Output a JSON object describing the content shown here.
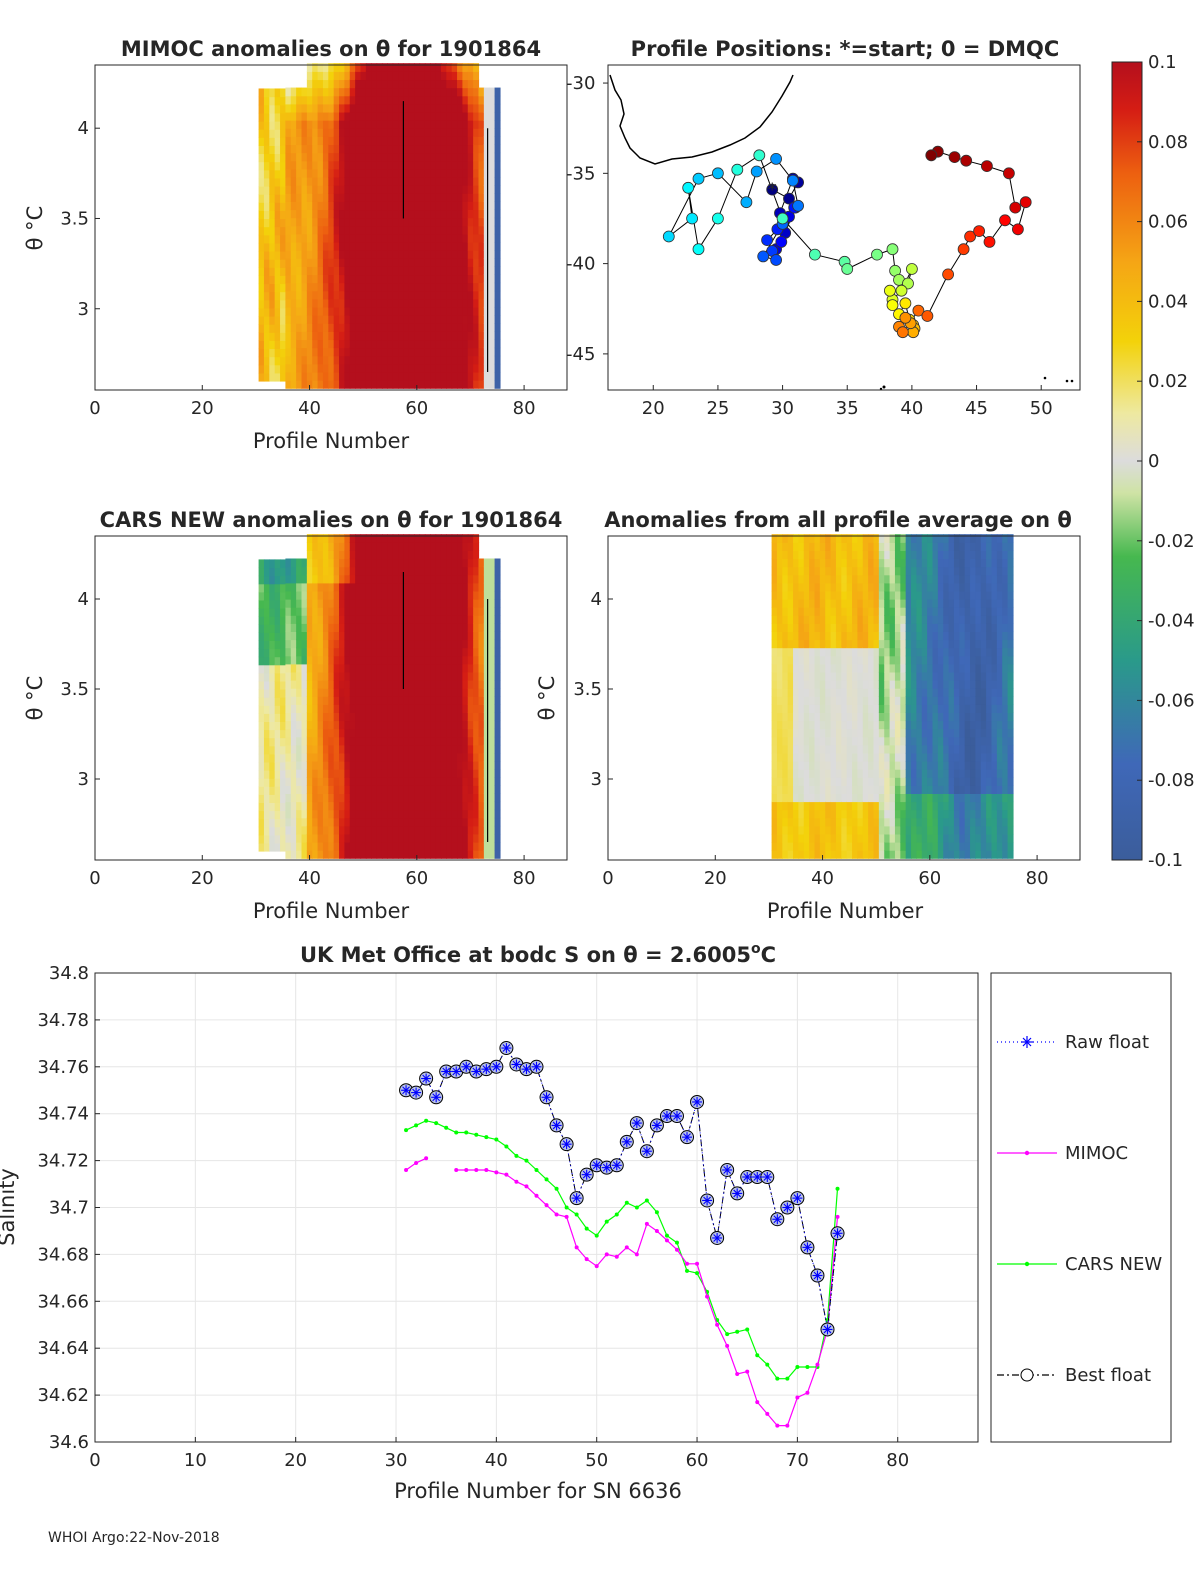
{
  "footer": "WHOI Argo:22-Nov-2018",
  "colorbar": {
    "ticks": [
      "0.1",
      "0.08",
      "0.06",
      "0.04",
      "0.02",
      "0",
      "-0.02",
      "-0.04",
      "-0.06",
      "-0.08",
      "-0.1"
    ],
    "min": -0.1,
    "max": 0.1
  },
  "panels": {
    "mimoc": {
      "title": "MIMOC anomalies on θ  for 1901864",
      "xlabel": "Profile Number",
      "ylabel": "θ °C",
      "xticks": [
        "0",
        "20",
        "40",
        "60",
        "80"
      ],
      "yticks": [
        "4",
        "3.5",
        "3"
      ]
    },
    "positions": {
      "title": "Profile Positions: *=start; 0 = DMQC",
      "xticks": [
        "20",
        "25",
        "30",
        "35",
        "40",
        "45",
        "50"
      ],
      "yticks": [
        "-30",
        "-35",
        "-40",
        "-45"
      ]
    },
    "cars": {
      "title": "CARS NEW anomalies on θ for 1901864",
      "xlabel": "Profile Number",
      "ylabel": "θ °C",
      "xticks": [
        "0",
        "20",
        "40",
        "60",
        "80"
      ],
      "yticks": [
        "4",
        "3.5",
        "3"
      ]
    },
    "allavg": {
      "title": "Anomalies from all profile average on θ",
      "xlabel": "Profile Number",
      "ylabel": "θ °C",
      "xticks": [
        "0",
        "20",
        "40",
        "60",
        "80"
      ],
      "yticks": [
        "4",
        "3.5",
        "3"
      ]
    }
  },
  "chart_data": [
    {
      "type": "heatmap",
      "title": "MIMOC anomalies on θ  for 1901864",
      "xlabel": "Profile Number",
      "ylabel": "θ °C",
      "xlim": [
        0,
        88
      ],
      "ylim": [
        2.55,
        4.35
      ],
      "profile_range": [
        31,
        76
      ],
      "summary": "strong positive anomalies (>0.1) for profiles ~45-72, near zero at edges, negative near profile 75"
    },
    {
      "type": "scatter",
      "title": "Profile Positions: *=start; 0 = DMQC",
      "xlim": [
        16.5,
        53
      ],
      "ylim": [
        -47,
        -29
      ],
      "color_by": "profile number",
      "lon": [
        29.2,
        30.5,
        31.2,
        30.8,
        29.8,
        30.2,
        29.5,
        30.5,
        31.0,
        29.9,
        30.9,
        29.6,
        28.8,
        29.2,
        29.5,
        28.5,
        30.0,
        31.2,
        30.8,
        29.5,
        28.0,
        27.2,
        25.0,
        23.5,
        21.2,
        23.0,
        22.7,
        23.5,
        25.0,
        26.5,
        28.2,
        30.0,
        32.5,
        34.8,
        35.0,
        37.3,
        38.5,
        38.7,
        39.0,
        39.7,
        40.0,
        39.2,
        38.5,
        38.3,
        38.5,
        39.0,
        39.5,
        39.8,
        40.1,
        40.2,
        40.1,
        39.9,
        39.5,
        39.0,
        39.3,
        40.5,
        41.2,
        42.8,
        44.0,
        44.5,
        45.2,
        46.0,
        47.2,
        48.2,
        48.8,
        48.0,
        47.5,
        45.8,
        44.2,
        43.3,
        42.0,
        41.5
      ],
      "lat": [
        -35.9,
        -36.4,
        -35.5,
        -35.3,
        -37.2,
        -38.3,
        -39.2,
        -37.4,
        -36.9,
        -38.8,
        -36.9,
        -38.1,
        -38.7,
        -39.3,
        -39.8,
        -39.6,
        -37.8,
        -36.8,
        -35.4,
        -34.2,
        -34.9,
        -36.6,
        -35.0,
        -35.3,
        -38.5,
        -37.5,
        -35.8,
        -39.2,
        -37.5,
        -34.8,
        -34.0,
        -37.5,
        -39.5,
        -39.9,
        -40.3,
        -39.5,
        -39.2,
        -40.4,
        -40.9,
        -41.1,
        -40.3,
        -41.5,
        -42.0,
        -41.5,
        -42.3,
        -42.8,
        -42.2,
        -43.1,
        -43.4,
        -43.6,
        -43.8,
        -43.3,
        -43.0,
        -43.5,
        -43.8,
        -42.6,
        -42.9,
        -40.6,
        -39.2,
        -38.5,
        -38.2,
        -38.8,
        -37.6,
        -38.1,
        -36.6,
        -36.9,
        -35.0,
        -34.6,
        -34.3,
        -34.1,
        -33.8,
        -34.0
      ],
      "start_marker": "*",
      "dmqc_marker": "0"
    },
    {
      "type": "heatmap",
      "title": "CARS NEW anomalies on θ for 1901864",
      "xlabel": "Profile Number",
      "ylabel": "θ °C",
      "xlim": [
        0,
        88
      ],
      "ylim": [
        2.55,
        4.35
      ],
      "profile_range": [
        31,
        76
      ],
      "summary": "near zero / slightly negative for profiles 31-40, strong positive anomalies for profiles ~45-72"
    },
    {
      "type": "heatmap",
      "title": "Anomalies from all profile average on θ",
      "xlabel": "Profile Number",
      "ylabel": "θ °C",
      "xlim": [
        0,
        88
      ],
      "ylim": [
        2.55,
        4.35
      ],
      "profile_range": [
        31,
        76
      ],
      "summary": "weak positive anomalies for profiles 31-50 at warm levels, near zero mid-range, negative anomalies (~-0.09) for profiles 55-75"
    },
    {
      "type": "line",
      "title": "UK Met Office at bodc S on θ = 2.6005°C",
      "title_main": "UK Met Office at bodc S on θ = 2.6005",
      "title_sup": "o",
      "title_end": "C",
      "xlabel": "Profile Number for SN 6636",
      "ylabel": "Salinity",
      "xlim": [
        0,
        88
      ],
      "ylim": [
        34.6,
        34.8
      ],
      "xticks": [
        "0",
        "10",
        "20",
        "30",
        "40",
        "50",
        "60",
        "70",
        "80"
      ],
      "yticks": [
        "34.8",
        "34.78",
        "34.76",
        "34.74",
        "34.72",
        "34.7",
        "34.68",
        "34.66",
        "34.64",
        "34.62",
        "34.6"
      ],
      "grid": true,
      "legend_position": "outside-right",
      "series": [
        {
          "name": "Raw float",
          "color": "#0000ff",
          "style": "dotted-asterisk",
          "x": [
            31,
            32,
            33,
            34,
            35,
            36,
            37,
            38,
            39,
            40,
            41,
            42,
            43,
            44,
            45,
            46,
            47,
            48,
            49,
            50,
            51,
            52,
            53,
            54,
            55,
            56,
            57,
            58,
            59,
            60,
            61,
            62,
            63,
            64,
            65,
            66,
            67,
            68,
            69,
            70,
            71,
            72,
            73,
            74
          ],
          "values": [
            34.75,
            34.749,
            34.755,
            34.747,
            34.758,
            34.758,
            34.76,
            34.758,
            34.759,
            34.76,
            34.768,
            34.761,
            34.759,
            34.76,
            34.747,
            34.735,
            34.727,
            34.704,
            34.714,
            34.718,
            34.717,
            34.718,
            34.728,
            34.736,
            34.724,
            34.735,
            34.739,
            34.739,
            34.73,
            34.745,
            34.703,
            34.687,
            34.716,
            34.706,
            34.713,
            34.713,
            34.713,
            34.695,
            34.7,
            34.704,
            34.683,
            34.671,
            34.648,
            34.689
          ]
        },
        {
          "name": "MIMOC",
          "color": "#ff00ff",
          "style": "line-dot",
          "segments": [
            {
              "x": [
                31,
                32,
                33
              ],
              "values": [
                34.716,
                34.719,
                34.721
              ]
            },
            {
              "x": [
                36,
                37,
                38,
                39,
                40,
                41,
                42,
                43,
                44,
                45,
                46,
                47,
                48,
                49,
                50,
                51,
                52,
                53,
                54,
                55,
                56,
                57,
                58,
                59,
                60,
                61,
                62,
                63,
                64,
                65,
                66,
                67,
                68,
                69,
                70,
                71,
                72,
                73,
                74
              ],
              "values": [
                34.716,
                34.716,
                34.716,
                34.716,
                34.715,
                34.714,
                34.711,
                34.709,
                34.705,
                34.701,
                34.697,
                34.696,
                34.683,
                34.678,
                34.675,
                34.68,
                34.679,
                34.683,
                34.68,
                34.693,
                34.69,
                34.686,
                34.682,
                34.676,
                34.676,
                34.662,
                34.65,
                34.641,
                34.629,
                34.63,
                34.617,
                34.612,
                34.607,
                34.607,
                34.619,
                34.621,
                34.633,
                34.648,
                34.696
              ]
            }
          ]
        },
        {
          "name": "CARS NEW",
          "color": "#00ff00",
          "style": "line-dot",
          "x": [
            31,
            32,
            33,
            34,
            35,
            36,
            37,
            38,
            39,
            40,
            41,
            42,
            43,
            44,
            45,
            46,
            47,
            48,
            49,
            50,
            51,
            52,
            53,
            54,
            55,
            56,
            57,
            58,
            59,
            60,
            61,
            62,
            63,
            64,
            65,
            66,
            67,
            68,
            69,
            70,
            71,
            72,
            73,
            74
          ],
          "values": [
            34.733,
            34.735,
            34.737,
            34.736,
            34.734,
            34.732,
            34.732,
            34.731,
            34.73,
            34.729,
            34.726,
            34.722,
            34.72,
            34.716,
            34.712,
            34.708,
            34.7,
            34.697,
            34.691,
            34.688,
            34.694,
            34.697,
            34.702,
            34.7,
            34.703,
            34.698,
            34.688,
            34.685,
            34.673,
            34.672,
            34.664,
            34.652,
            34.646,
            34.647,
            34.648,
            34.637,
            34.633,
            34.627,
            34.627,
            34.632,
            34.632,
            34.632,
            34.652,
            34.708
          ]
        },
        {
          "name": "Best float",
          "color": "#000000",
          "style": "dashdot-circle",
          "x": [
            31,
            32,
            33,
            34,
            35,
            36,
            37,
            38,
            39,
            40,
            41,
            42,
            43,
            44,
            45,
            46,
            47,
            48,
            49,
            50,
            51,
            52,
            53,
            54,
            55,
            56,
            57,
            58,
            59,
            60,
            61,
            62,
            63,
            64,
            65,
            66,
            67,
            68,
            69,
            70,
            71,
            72,
            73,
            74
          ],
          "values": [
            34.75,
            34.749,
            34.755,
            34.747,
            34.758,
            34.758,
            34.76,
            34.758,
            34.759,
            34.76,
            34.768,
            34.761,
            34.759,
            34.76,
            34.747,
            34.735,
            34.727,
            34.704,
            34.714,
            34.718,
            34.717,
            34.718,
            34.728,
            34.736,
            34.724,
            34.735,
            34.739,
            34.739,
            34.73,
            34.745,
            34.703,
            34.687,
            34.716,
            34.706,
            34.713,
            34.713,
            34.713,
            34.695,
            34.7,
            34.704,
            34.683,
            34.671,
            34.648,
            34.689
          ]
        }
      ]
    }
  ]
}
